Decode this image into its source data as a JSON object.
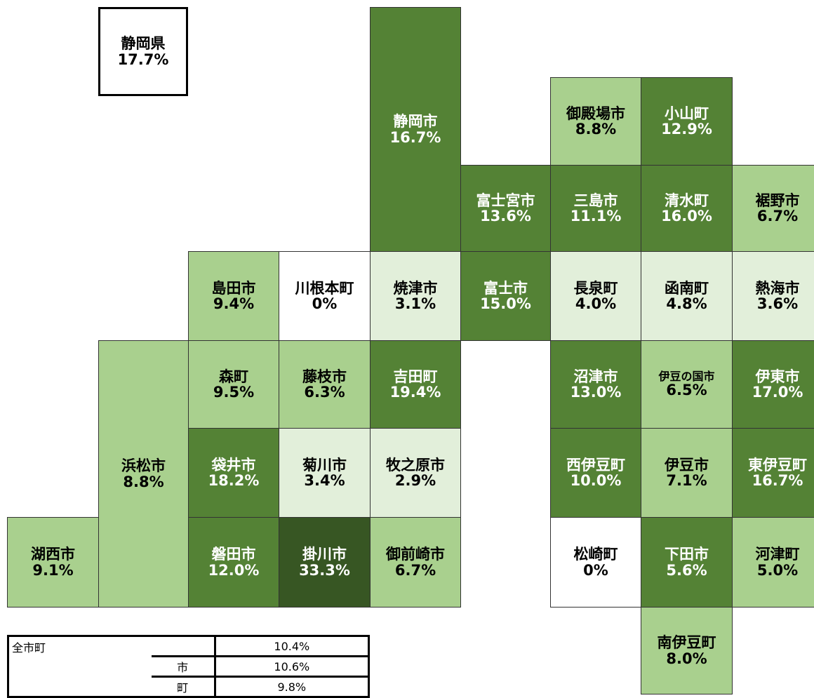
{
  "prefecture": {
    "name": "静岡県",
    "value": "17.7%"
  },
  "tiles": [
    {
      "name": "静岡市",
      "value": "16.7%",
      "color": "#548235"
    },
    {
      "name": "御殿場市",
      "value": "8.8%",
      "color": "#a9d08e"
    },
    {
      "name": "小山町",
      "value": "12.9%",
      "color": "#548235"
    },
    {
      "name": "富士宮市",
      "value": "13.6%",
      "color": "#548235"
    },
    {
      "name": "三島市",
      "value": "11.1%",
      "color": "#548235"
    },
    {
      "name": "清水町",
      "value": "16.0%",
      "color": "#548235"
    },
    {
      "name": "裾野市",
      "value": "6.7%",
      "color": "#a9d08e"
    },
    {
      "name": "島田市",
      "value": "9.4%",
      "color": "#a9d08e"
    },
    {
      "name": "川根本町",
      "value": "0%",
      "color": "#ffffff"
    },
    {
      "name": "焼津市",
      "value": "3.1%",
      "color": "#e2efda"
    },
    {
      "name": "富士市",
      "value": "15.0%",
      "color": "#548235"
    },
    {
      "name": "長泉町",
      "value": "4.0%",
      "color": "#e2efda"
    },
    {
      "name": "函南町",
      "value": "4.8%",
      "color": "#e2efda"
    },
    {
      "name": "熱海市",
      "value": "3.6%",
      "color": "#e2efda"
    },
    {
      "name": "浜松市",
      "value": "8.8%",
      "color": "#a9d08e"
    },
    {
      "name": "森町",
      "value": "9.5%",
      "color": "#a9d08e"
    },
    {
      "name": "藤枝市",
      "value": "6.3%",
      "color": "#a9d08e"
    },
    {
      "name": "吉田町",
      "value": "19.4%",
      "color": "#548235"
    },
    {
      "name": "沼津市",
      "value": "13.0%",
      "color": "#548235"
    },
    {
      "name": "伊豆の国市",
      "value": "6.5%",
      "color": "#a9d08e"
    },
    {
      "name": "伊東市",
      "value": "17.0%",
      "color": "#548235"
    },
    {
      "name": "袋井市",
      "value": "18.2%",
      "color": "#548235"
    },
    {
      "name": "菊川市",
      "value": "3.4%",
      "color": "#e2efda"
    },
    {
      "name": "牧之原市",
      "value": "2.9%",
      "color": "#e2efda"
    },
    {
      "name": "西伊豆町",
      "value": "10.0%",
      "color": "#548235"
    },
    {
      "name": "伊豆市",
      "value": "7.1%",
      "color": "#a9d08e"
    },
    {
      "name": "東伊豆町",
      "value": "16.7%",
      "color": "#548235"
    },
    {
      "name": "湖西市",
      "value": "9.1%",
      "color": "#a9d08e"
    },
    {
      "name": "磐田市",
      "value": "12.0%",
      "color": "#548235"
    },
    {
      "name": "掛川市",
      "value": "33.3%",
      "color": "#375623"
    },
    {
      "name": "御前崎市",
      "value": "6.7%",
      "color": "#a9d08e"
    },
    {
      "name": "松崎町",
      "value": "0%",
      "color": "#ffffff"
    },
    {
      "name": "下田市",
      "value": "5.6%",
      "color": "#548235"
    },
    {
      "name": "河津町",
      "value": "5.0%",
      "color": "#a9d08e"
    },
    {
      "name": "南伊豆町",
      "value": "8.0%",
      "color": "#a9d08e"
    }
  ],
  "summary": {
    "rows": [
      [
        "全市町",
        "",
        "10.4%"
      ],
      [
        "",
        "市",
        "10.6%"
      ],
      [
        "",
        "町",
        "9.8%"
      ]
    ]
  }
}
